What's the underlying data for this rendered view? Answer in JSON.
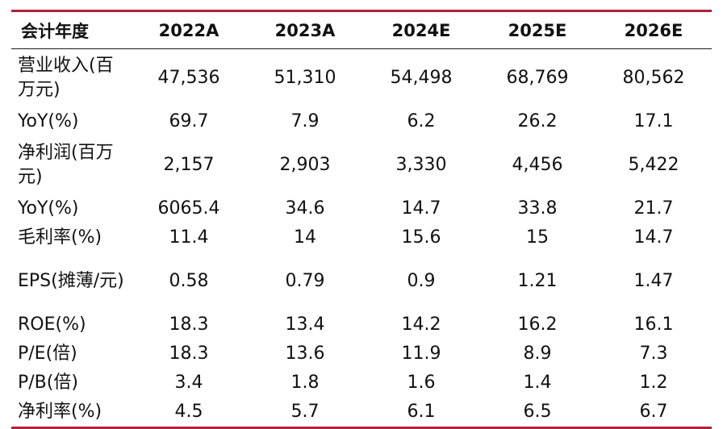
{
  "table": {
    "headers": [
      "会计年度",
      "2022A",
      "2023A",
      "2024E",
      "2025E",
      "2026E"
    ],
    "rows": [
      {
        "label": "营业收入(百万元)",
        "values": [
          "47,536",
          "51,310",
          "54,498",
          "68,769",
          "80,562"
        ]
      },
      {
        "label": "YoY(%)",
        "values": [
          "69.7",
          "7.9",
          "6.2",
          "26.2",
          "17.1"
        ]
      },
      {
        "label": "净利润(百万元)",
        "values": [
          "2,157",
          "2,903",
          "3,330",
          "4,456",
          "5,422"
        ]
      },
      {
        "label": "YoY(%)",
        "values": [
          "6065.4",
          "34.6",
          "14.7",
          "33.8",
          "21.7"
        ]
      },
      {
        "label": "毛利率(%)",
        "values": [
          "11.4",
          "14",
          "15.6",
          "15",
          "14.7"
        ]
      },
      {
        "label": "EPS(摊薄/元)",
        "values": [
          "0.58",
          "0.79",
          "0.9",
          "1.21",
          "1.47"
        ]
      },
      {
        "label": "ROE(%)",
        "values": [
          "18.3",
          "13.4",
          "14.2",
          "16.2",
          "16.1"
        ]
      },
      {
        "label": "P/E(倍)",
        "values": [
          "18.3",
          "13.6",
          "11.9",
          "8.9",
          "7.3"
        ]
      },
      {
        "label": "P/B(倍)",
        "values": [
          "3.4",
          "1.8",
          "1.6",
          "1.4",
          "1.2"
        ]
      },
      {
        "label": "净利率(%)",
        "values": [
          "4.5",
          "5.7",
          "6.1",
          "6.5",
          "6.7"
        ]
      }
    ]
  },
  "colors": {
    "accent_rule": "#b0213a",
    "text": "#111111"
  }
}
